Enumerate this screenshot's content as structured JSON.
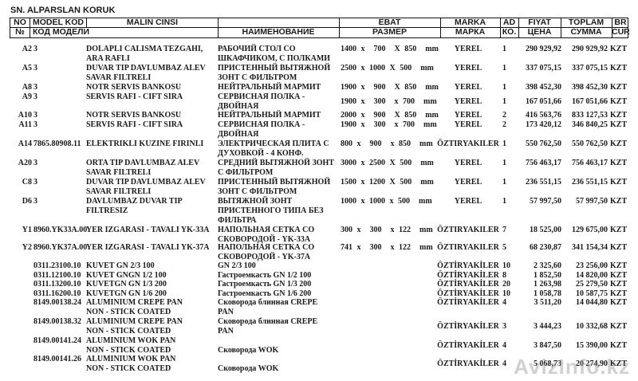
{
  "title": "SN. ALPARSLAN KORUK",
  "header": {
    "row1": {
      "no": "NO",
      "model": "MODEL KOD",
      "malin": "MALIN CINSI",
      "name": "",
      "ebat": "EBAT",
      "marka": "MARKA",
      "ad": "AD",
      "fiyat": "FIYAT",
      "toplam": "TOPLAM",
      "cur": "BR"
    },
    "row2": {
      "no": "№",
      "model": "КОД МОДЕЛИ",
      "name": "НАИМЕНОВАНИЕ",
      "ebat": "РАЗМЕР",
      "marka": "МАРКА",
      "ad": "КО.",
      "fiyat": "ЦЕНА",
      "toplam": "СУММА",
      "cur": "CUR"
    }
  },
  "items": [
    {
      "no": "A2",
      "model": "3",
      "malin": [
        "DOLAPLI CALISMA TEZGAHI,",
        "ARA RAFLI"
      ],
      "name": [
        "РАБОЧИЙ СТОЛ СО",
        "ШКАФЧИКОМ, С ПОЛКАМИ"
      ],
      "ebat": "1400 x  700  X 850  mm",
      "marka": "YEREL",
      "ad": "1",
      "fiyat": "290 929,92",
      "toplam": "290 929,92",
      "cur": "KZT"
    },
    {
      "no": "A5",
      "model": "3",
      "malin": [
        "DUVAR TIP DAVLUMBAZ ALEV",
        "SAVAR FILTRELI"
      ],
      "name": [
        "ПРИСТЕННЫЙ ВЫТЯЖНОЙ",
        "ЗОНТ  С ФИЛЬТРОМ"
      ],
      "ebat": "2500 x 1000 X 500  mm",
      "marka": "YEREL",
      "ad": "1",
      "fiyat": "337 075,15",
      "toplam": "337 075,15",
      "cur": "KZT"
    },
    {
      "no": "A8",
      "model": "3",
      "malin": [
        "NOTR SERVIS BANKOSU"
      ],
      "name": [
        "НЕЙТРАЛЬНЫЙ МАРМИТ"
      ],
      "ebat": "1900 x  900  X 850  mm",
      "marka": "YEREL",
      "ad": "1",
      "fiyat": "398 452,30",
      "toplam": "398 452,30",
      "cur": "KZT"
    },
    {
      "no": "A9",
      "model": "3",
      "malin": [
        "SERVIS RAFI - CIFT SIRA"
      ],
      "name": [
        "СЕРВИСНАЯ ПОЛКА -",
        "ДВОЙНАЯ"
      ],
      "ebat": "1900 x  300  x 700  mm",
      "marka": "YEREL",
      "ad": "1",
      "fiyat": "167 051,66",
      "toplam": "167 051,66",
      "cur": "KZT"
    },
    {
      "no": "A10",
      "model": "3",
      "malin": [
        "NOTR SERVIS BANKOSU"
      ],
      "name": [
        "НЕЙТРАЛЬНЫЙ МАРМИТ"
      ],
      "ebat": "2000 x  900  X 850  mm",
      "marka": "YEREL",
      "ad": "2",
      "fiyat": "416 563,76",
      "toplam": "833 127,53",
      "cur": "KZT"
    },
    {
      "no": "A11",
      "model": "3",
      "malin": [
        "SERVIS RAFI - CIFT SIRA"
      ],
      "name": [
        "СЕРВИСНАЯ ПОЛКА -",
        "ДВОЙНАЯ"
      ],
      "ebat": "1900 x  300  x 700  mm",
      "marka": "YEREL",
      "ad": "2",
      "fiyat": "173 420,12",
      "toplam": "346 840,25",
      "cur": "KZT"
    },
    {
      "no": "A14",
      "model": "7865.80908.11",
      "malin": [
        "ELEKTRIKLI KUZINE FIRINLI"
      ],
      "name": [
        "ЭЛЕКТРИЧЕСКАЯ ПЛИТА С",
        "ДУХОВКОЙ - 4 КОНФ."
      ],
      "ebat": "800 x  900  x 850  mm",
      "marka": "ÖZTIRYAKILER",
      "ad": "1",
      "fiyat": "550 762,50",
      "toplam": "550 762,50",
      "cur": "KZT"
    },
    {
      "no": "A20",
      "model": "3",
      "malin": [
        "ORTA TIP DAVLUMBAZ ALEV",
        "SAVAR FILTRELI"
      ],
      "name": [
        "СРЕДНИЙ ВЫТЯЖНОЙ ЗОНТ",
        "С ФИЛЬТРОМ"
      ],
      "ebat": "3000 x 2500 X 500  mm",
      "marka": "YEREL",
      "ad": "1",
      "fiyat": "756 463,17",
      "toplam": "756 463,17",
      "cur": "KZT"
    },
    {
      "no": "C8",
      "model": "3",
      "malin": [
        "DUVAR TIP DAVLUMBAZ ALEV",
        "SAVAR FILTRELI"
      ],
      "name": [
        "ПРИСТЕННЫЙ ВЫТЯЖНОЙ",
        "ЗОНТ  С ФИЛЬТРОМ"
      ],
      "ebat": "1500 x 1200 X 500  mm",
      "marka": "YEREL",
      "ad": "1",
      "fiyat": "236 551,15",
      "toplam": "236 551,15",
      "cur": "KZT"
    },
    {
      "no": "D6",
      "model": "3",
      "malin": [
        "DAVLUMBAZ DUVAR TIP",
        "FILTRESIZ"
      ],
      "name": [
        "ВЫТЯЖНОЙ ЗОНТ",
        "ПРИСТЕННОГО ТИПА БЕЗ",
        "ФИЛЬТРА"
      ],
      "ebat": "1000 x 1000 x 500  mm",
      "marka": "YEREL",
      "ad": "1",
      "fiyat": "57 997,50",
      "toplam": "57 997,50",
      "cur": "KZT"
    },
    {
      "no": "Y1",
      "model": "8960.YK33A.00",
      "malin": [
        "YER IZGARASI - TAVALI  YK-33A"
      ],
      "name": [
        "НАПОЛЬНАЯ СЕТКА СО",
        "СКОВОРОДОЙ - YK-33A"
      ],
      "ebat": "300 x  300  x 122  mm",
      "marka": "ÖZTIRYAKILER",
      "ad": "7",
      "fiyat": "18 525,00",
      "toplam": "129 675,00",
      "cur": "KZT"
    },
    {
      "no": "Y2",
      "model": "8960.YK37A.00",
      "malin": [
        "YER IZGARASI - TAVALI  YK-37A"
      ],
      "name": [
        "НАПОЛЬНАЯ СЕТКА СО",
        "СКОВОРОДОЙ - YK-37A"
      ],
      "ebat": "741 x  300  x 122  mm",
      "marka": "ÖZTIRYAKILER",
      "ad": "5",
      "fiyat": "68 230,87",
      "toplam": "341 154,34",
      "cur": "KZT"
    },
    {
      "no": "",
      "model": "0311.23100.10",
      "malin": [
        "KUVET GN 2/3 100"
      ],
      "name": [
        "GN 2/3 100"
      ],
      "ebat": "",
      "marka": "ÖZTİRYAKİLER",
      "ad": "10",
      "fiyat": "2 325,60",
      "toplam": "23 256,00",
      "cur": "KZT"
    },
    {
      "no": "",
      "model": "0311.12100.10",
      "malin": [
        "KUVET GNGN 1/2 100"
      ],
      "name": [
        "Гастроемкасть GN 1/2 100"
      ],
      "ebat": "",
      "marka": "ÖZTİRYAKİLER",
      "ad": "8",
      "fiyat": "1 852,50",
      "toplam": "14 820,00",
      "cur": "KZT"
    },
    {
      "no": "",
      "model": "0311.13200.10",
      "malin": [
        "KUVETGN GN 1/3 200"
      ],
      "name": [
        "Гастроемкасть  GN 1/3 200"
      ],
      "ebat": "",
      "marka": "ÖZTİRYAKİLER",
      "ad": "20",
      "fiyat": "1 263,98",
      "toplam": "25 279,50",
      "cur": "KZT"
    },
    {
      "no": "",
      "model": "0311.16200.10",
      "malin": [
        "KUVETGN GN 1/6 200"
      ],
      "name": [
        "Гастроемкасть GN 1/6 200"
      ],
      "ebat": "",
      "marka": "ÖZTİRYAKİLER",
      "ad": "10",
      "fiyat": "1 058,78",
      "toplam": "10 587,75",
      "cur": "KZT"
    },
    {
      "no": "",
      "model": "8149.00138.24",
      "malin": [
        "ALUMINIUM CREPE PAN",
        "NON - STICK COATED"
      ],
      "name": [
        "Сковорода блинная CREPE",
        "PAN"
      ],
      "ebat": "",
      "marka": "ÖZTİRYAKİLER",
      "ad": "4",
      "fiyat": "3 511,20",
      "toplam": "14 044,80",
      "cur": "KZT"
    },
    {
      "no": "",
      "model": "8149.00138.32",
      "malin": [
        "ALUMINIUM CREPE PAN",
        "NON - STICK COATED"
      ],
      "name": [
        "Сковорода блинная CREPE",
        "PAN"
      ],
      "ebat": "",
      "marka": "ÖZTİRYAKİLER",
      "ad": "3",
      "fiyat": "3 444,23",
      "toplam": "10 332,68",
      "cur": "KZT"
    },
    {
      "no": "",
      "model": "8149.00141.24",
      "malin": [
        "ALUMINIUM WOK PAN",
        "NON - STICK COATED"
      ],
      "name": [
        "",
        "Сковорода WOK"
      ],
      "ebat": "",
      "marka": "ÖZTİRYAKİLER",
      "ad": "4",
      "fiyat": "3 847,50",
      "toplam": "15 390,00",
      "cur": "KZT"
    },
    {
      "no": "",
      "model": "8149.00141.26",
      "malin": [
        "ALUMINIUM WOK PAN",
        "NON - STICK COATED"
      ],
      "name": [
        "",
        "Сковорода WOK"
      ],
      "ebat": "",
      "marka": "ÖZTİRYAKİLER",
      "ad": "4",
      "fiyat": "5 068,73",
      "toplam": "20 274,90",
      "cur": "KZT"
    }
  ],
  "watermark": "AvizInfo.kz"
}
